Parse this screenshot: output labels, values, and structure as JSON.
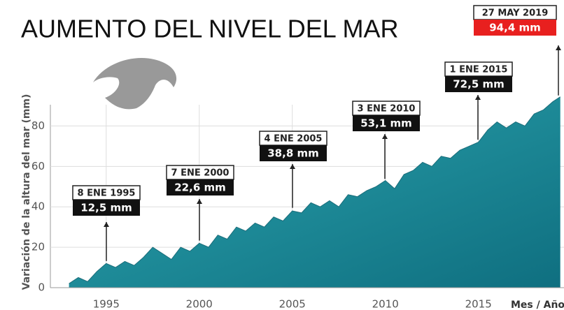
{
  "chart_data": {
    "type": "area",
    "title": "AUMENTO DEL NIVEL DEL MAR",
    "y_label": "Variación de la altura del mar (mm)",
    "x_label": "Mes / Año",
    "x": [
      1993.0,
      1993.5,
      1994.0,
      1994.5,
      1995.0,
      1995.5,
      1996.0,
      1996.5,
      1997.0,
      1997.5,
      1998.0,
      1998.5,
      1999.0,
      1999.5,
      2000.0,
      2000.5,
      2001.0,
      2001.5,
      2002.0,
      2002.5,
      2003.0,
      2003.5,
      2004.0,
      2004.5,
      2005.0,
      2005.5,
      2006.0,
      2006.5,
      2007.0,
      2007.5,
      2008.0,
      2008.5,
      2009.0,
      2009.5,
      2010.0,
      2010.5,
      2011.0,
      2011.5,
      2012.0,
      2012.5,
      2013.0,
      2013.5,
      2014.0,
      2014.5,
      2015.0,
      2015.5,
      2016.0,
      2016.5,
      2017.0,
      2017.5,
      2018.0,
      2018.5,
      2019.0,
      2019.4
    ],
    "values": [
      2,
      5,
      3,
      8,
      12,
      10,
      13,
      11,
      15,
      20,
      17,
      14,
      20,
      18,
      22,
      20,
      26,
      24,
      30,
      28,
      32,
      30,
      35,
      33,
      38,
      37,
      42,
      40,
      43,
      40,
      46,
      45,
      48,
      50,
      53,
      49,
      56,
      58,
      62,
      60,
      65,
      64,
      68,
      70,
      72,
      78,
      82,
      79,
      82,
      80,
      86,
      88,
      92,
      94.4
    ],
    "color": "#2a8f9c",
    "xlim": [
      1992,
      2019.6
    ],
    "ylim": [
      0,
      95
    ],
    "xticks": [
      1995,
      2000,
      2005,
      2010,
      2015
    ],
    "yticks": [
      0,
      20,
      40,
      60,
      80
    ],
    "grid": true,
    "annotations": [
      {
        "date": "8 ENE 1995",
        "value": 12.5,
        "value_label": "12,5 mm"
      },
      {
        "date": "7 ENE 2000",
        "value": 22.6,
        "value_label": "22,6 mm"
      },
      {
        "date": "4 ENE 2005",
        "value": 38.8,
        "value_label": "38,8 mm"
      },
      {
        "date": "3 ENE 2010",
        "value": 53.1,
        "value_label": "53,1 mm"
      },
      {
        "date": "1 ENE 2015",
        "value": 72.5,
        "value_label": "72,5 mm"
      },
      {
        "date": "27 MAY 2019",
        "value": 94.4,
        "value_label": "94,4 mm",
        "color": "#e8201f"
      }
    ]
  }
}
